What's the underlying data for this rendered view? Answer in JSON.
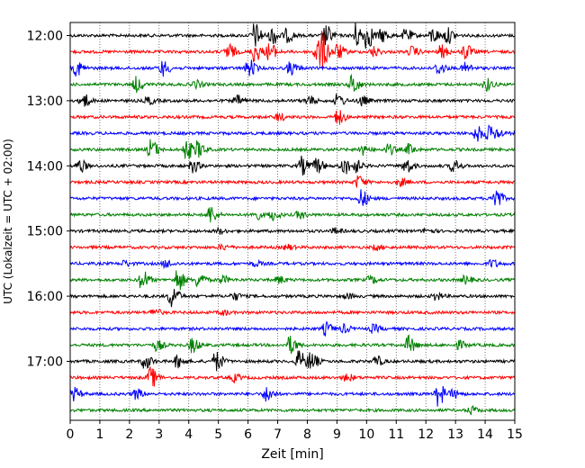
{
  "chart_data": {
    "type": "line",
    "title": "",
    "xlabel": "Zeit  [min]",
    "ylabel": "UTC (Lokalzeit = UTC + 02:00)",
    "xlim": [
      0,
      15
    ],
    "x_ticks": [
      "0",
      "1",
      "2",
      "3",
      "4",
      "5",
      "6",
      "7",
      "8",
      "9",
      "10",
      "11",
      "12",
      "13",
      "14",
      "15"
    ],
    "y_tick_labels": [
      "12:00",
      "13:00",
      "14:00",
      "15:00",
      "16:00",
      "17:00"
    ],
    "grid": "vertical dotted",
    "row_interval_min": 15,
    "color_cycle": [
      "#000000",
      "#ff0000",
      "#0000ff",
      "#008000"
    ],
    "series": [
      {
        "start": "12:00",
        "events": [
          [
            6.2,
            1.0
          ],
          [
            6.8,
            0.7
          ],
          [
            7.3,
            0.5
          ],
          [
            8.6,
            0.8
          ],
          [
            9.6,
            1.0
          ],
          [
            10.0,
            1.0
          ],
          [
            10.5,
            0.5
          ],
          [
            11.3,
            0.5
          ],
          [
            12.2,
            0.6
          ],
          [
            12.7,
            0.6
          ]
        ]
      },
      {
        "start": "12:15",
        "events": [
          [
            5.3,
            0.7
          ],
          [
            6.2,
            0.8
          ],
          [
            6.7,
            0.7
          ],
          [
            8.3,
            1.0
          ],
          [
            8.5,
            1.0
          ],
          [
            9.0,
            0.6
          ],
          [
            10.2,
            0.4
          ],
          [
            11.5,
            0.4
          ],
          [
            12.5,
            0.5
          ],
          [
            13.3,
            0.6
          ]
        ]
      },
      {
        "start": "12:30",
        "events": [
          [
            0.2,
            0.6
          ],
          [
            3.1,
            0.6
          ],
          [
            6.0,
            0.7
          ],
          [
            7.4,
            0.5
          ],
          [
            12.4,
            0.5
          ],
          [
            13.3,
            0.4
          ]
        ]
      },
      {
        "start": "12:45",
        "events": [
          [
            2.2,
            0.6
          ],
          [
            4.2,
            0.3
          ],
          [
            9.5,
            0.8
          ],
          [
            14.0,
            0.5
          ]
        ]
      },
      {
        "start": "13:00",
        "events": [
          [
            0.4,
            0.6
          ],
          [
            2.6,
            0.3
          ],
          [
            5.6,
            0.4
          ],
          [
            8.0,
            0.4
          ],
          [
            9.0,
            0.5
          ],
          [
            9.8,
            0.4
          ]
        ]
      },
      {
        "start": "13:15",
        "events": [
          [
            7.0,
            0.3
          ],
          [
            9.0,
            0.6
          ]
        ]
      },
      {
        "start": "13:30",
        "events": [
          [
            13.7,
            0.6
          ],
          [
            14.1,
            0.5
          ],
          [
            14.4,
            0.3
          ]
        ]
      },
      {
        "start": "13:45",
        "events": [
          [
            2.7,
            0.8
          ],
          [
            3.9,
            0.8
          ],
          [
            4.3,
            0.6
          ],
          [
            9.8,
            0.4
          ],
          [
            10.7,
            0.4
          ],
          [
            11.4,
            0.4
          ]
        ]
      },
      {
        "start": "14:00",
        "events": [
          [
            0.3,
            0.5
          ],
          [
            4.1,
            0.5
          ],
          [
            7.8,
            0.7
          ],
          [
            8.3,
            0.6
          ],
          [
            9.2,
            0.7
          ],
          [
            9.6,
            0.5
          ],
          [
            11.3,
            0.6
          ],
          [
            12.9,
            0.5
          ]
        ]
      },
      {
        "start": "14:15",
        "events": [
          [
            9.7,
            0.5
          ],
          [
            11.1,
            0.3
          ]
        ]
      },
      {
        "start": "14:30",
        "events": [
          [
            9.8,
            0.7
          ],
          [
            14.3,
            0.9
          ]
        ]
      },
      {
        "start": "14:45",
        "events": [
          [
            4.7,
            0.7
          ],
          [
            6.2,
            0.4
          ],
          [
            6.8,
            0.4
          ],
          [
            7.7,
            0.3
          ]
        ]
      },
      {
        "start": "15:00",
        "events": [
          [
            5.0,
            0.2
          ],
          [
            8.9,
            0.2
          ],
          [
            12.0,
            0.2
          ]
        ]
      },
      {
        "start": "15:15",
        "events": [
          [
            5.1,
            0.2
          ],
          [
            7.3,
            0.2
          ],
          [
            10.3,
            0.2
          ]
        ]
      },
      {
        "start": "15:30",
        "events": [
          [
            1.8,
            0.2
          ],
          [
            3.2,
            0.3
          ],
          [
            6.2,
            0.2
          ],
          [
            14.2,
            0.3
          ]
        ]
      },
      {
        "start": "15:45",
        "events": [
          [
            2.4,
            0.8
          ],
          [
            3.6,
            0.9
          ],
          [
            4.3,
            0.6
          ],
          [
            5.1,
            0.3
          ],
          [
            7.0,
            0.3
          ],
          [
            10.1,
            0.3
          ],
          [
            13.3,
            0.3
          ]
        ]
      },
      {
        "start": "16:00",
        "events": [
          [
            3.4,
            0.9
          ],
          [
            5.5,
            0.3
          ],
          [
            9.3,
            0.2
          ],
          [
            12.3,
            0.3
          ]
        ]
      },
      {
        "start": "16:15",
        "events": [
          [
            2.8,
            0.3
          ],
          [
            5.1,
            0.2
          ]
        ]
      },
      {
        "start": "16:30",
        "events": [
          [
            8.6,
            0.5
          ],
          [
            9.2,
            0.3
          ],
          [
            10.2,
            0.3
          ]
        ]
      },
      {
        "start": "16:45",
        "events": [
          [
            2.9,
            0.4
          ],
          [
            4.1,
            0.6
          ],
          [
            7.4,
            0.7
          ],
          [
            11.4,
            0.7
          ],
          [
            13.1,
            0.3
          ]
        ]
      },
      {
        "start": "17:00",
        "events": [
          [
            2.5,
            0.6
          ],
          [
            3.6,
            0.5
          ],
          [
            4.9,
            0.8
          ],
          [
            7.7,
            0.8
          ],
          [
            8.1,
            0.7
          ],
          [
            10.3,
            0.4
          ]
        ]
      },
      {
        "start": "17:15",
        "events": [
          [
            2.7,
            0.8
          ],
          [
            5.5,
            0.3
          ],
          [
            9.3,
            0.3
          ]
        ]
      },
      {
        "start": "17:30",
        "events": [
          [
            0.1,
            0.5
          ],
          [
            2.2,
            0.4
          ],
          [
            6.6,
            0.6
          ],
          [
            12.4,
            0.9
          ],
          [
            12.9,
            0.3
          ]
        ]
      },
      {
        "start": "17:45",
        "events": [
          [
            13.5,
            0.3
          ]
        ]
      }
    ]
  }
}
